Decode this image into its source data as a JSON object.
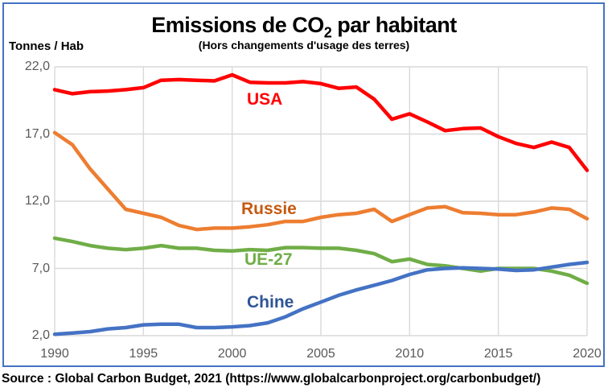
{
  "figure": {
    "title": {
      "prefix": "Emissions de CO",
      "subscript": "2",
      "suffix": " par habitant"
    },
    "subtitle": "(Hors changements d'usage des terres)",
    "y_axis_unit": "Tonnes / Hab",
    "source": "Source : Global Carbon Budget, 2021 (https://www.globalcarbonproject.org/carbonbudget/)"
  },
  "chart_data": {
    "type": "line",
    "title": "Emissions de CO2 par habitant",
    "subtitle": "(Hors changements d'usage des terres)",
    "ylabel": "Tonnes / Hab",
    "xlim": [
      1990,
      2020
    ],
    "ylim": [
      2,
      22
    ],
    "grid": true,
    "legend_position": "inline-labels",
    "x": [
      1990,
      1991,
      1992,
      1993,
      1994,
      1995,
      1996,
      1997,
      1998,
      1999,
      2000,
      2001,
      2002,
      2003,
      2004,
      2005,
      2006,
      2007,
      2008,
      2009,
      2010,
      2011,
      2012,
      2013,
      2014,
      2015,
      2016,
      2017,
      2018,
      2019,
      2020
    ],
    "x_tick_values": [
      1990,
      1995,
      2000,
      2005,
      2010,
      2015,
      2020
    ],
    "x_tick_labels": [
      "1990",
      "1995",
      "2000",
      "2005",
      "2010",
      "2015",
      "2020"
    ],
    "y_tick_values": [
      22,
      17,
      12,
      7,
      2
    ],
    "y_tick_labels": [
      "22,0",
      "17,0",
      "12,0",
      "7,0",
      "2,0"
    ],
    "series": [
      {
        "name": "USA",
        "color": "#FF0000",
        "label_color": "#FF0000",
        "values": [
          20.3,
          20.0,
          20.15,
          20.2,
          20.3,
          20.45,
          21.0,
          21.05,
          21.0,
          20.95,
          21.4,
          20.85,
          20.8,
          20.8,
          20.9,
          20.75,
          20.4,
          20.5,
          19.6,
          18.1,
          18.5,
          17.9,
          17.25,
          17.4,
          17.45,
          16.8,
          16.3,
          16.0,
          16.4,
          16.0,
          14.3
        ]
      },
      {
        "name": "Russie",
        "color": "#ED7D31",
        "label_color": "#C55A11",
        "values": [
          17.1,
          16.2,
          14.4,
          12.9,
          11.4,
          11.1,
          10.8,
          10.2,
          9.9,
          10.0,
          10.0,
          10.1,
          10.25,
          10.5,
          10.5,
          10.8,
          11.0,
          11.1,
          11.4,
          10.5,
          11.0,
          11.5,
          11.6,
          11.15,
          11.1,
          11.0,
          11.0,
          11.2,
          11.5,
          11.4,
          10.7
        ]
      },
      {
        "name": "UE-27",
        "color": "#70AD47",
        "label_color": "#70AD47",
        "values": [
          9.25,
          9.0,
          8.7,
          8.5,
          8.4,
          8.5,
          8.7,
          8.5,
          8.5,
          8.35,
          8.3,
          8.4,
          8.35,
          8.55,
          8.55,
          8.5,
          8.5,
          8.35,
          8.1,
          7.5,
          7.7,
          7.3,
          7.2,
          7.0,
          6.8,
          7.0,
          7.0,
          7.0,
          6.8,
          6.5,
          5.9
        ]
      },
      {
        "name": "Chine",
        "color": "#4472C4",
        "label_color": "#2F5597",
        "values": [
          2.1,
          2.2,
          2.3,
          2.5,
          2.6,
          2.8,
          2.85,
          2.85,
          2.6,
          2.6,
          2.65,
          2.75,
          2.95,
          3.4,
          4.0,
          4.5,
          5.0,
          5.4,
          5.75,
          6.1,
          6.55,
          6.9,
          7.0,
          7.05,
          7.0,
          6.95,
          6.85,
          6.9,
          7.1,
          7.3,
          7.45
        ]
      }
    ],
    "colors": {
      "grid": "#D9D9D9",
      "axis_text": "#595959",
      "figure_border": "#4472C4"
    }
  }
}
